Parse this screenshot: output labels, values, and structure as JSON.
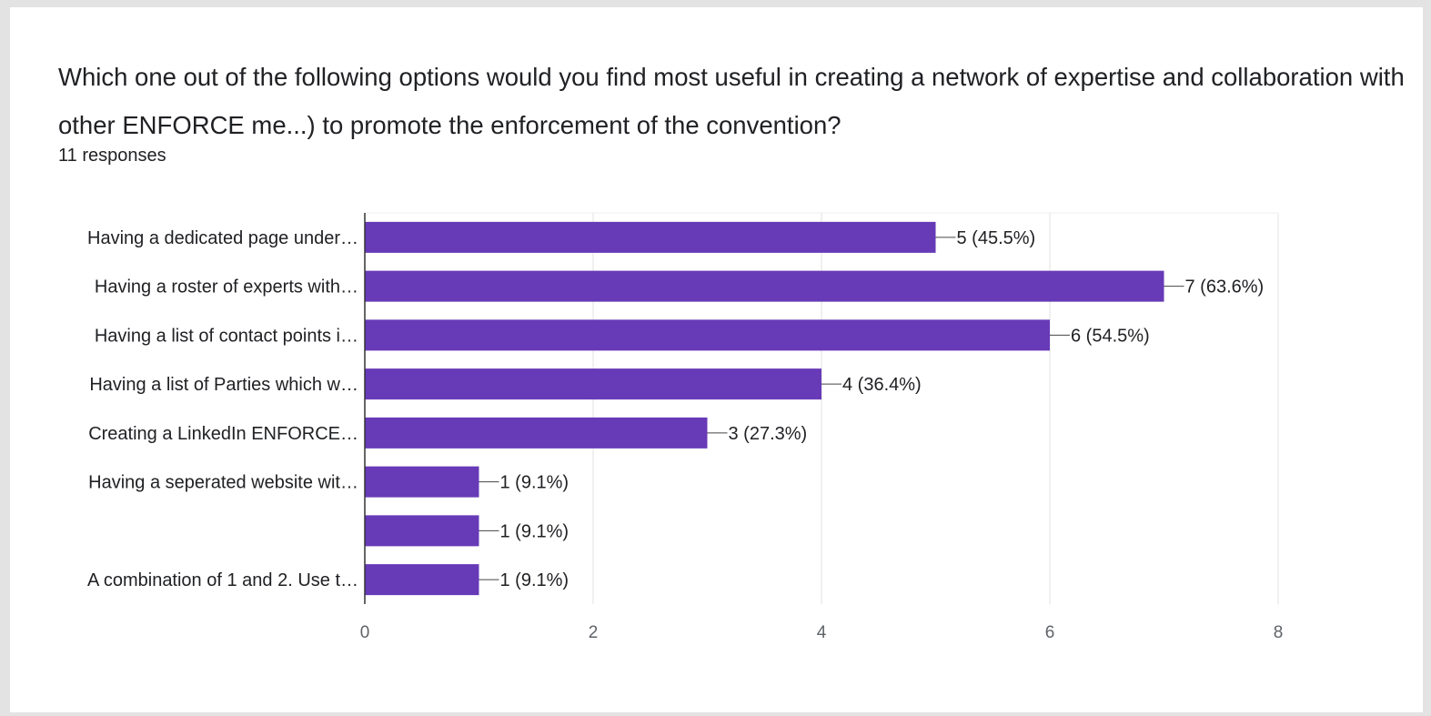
{
  "question": {
    "text": "Which one out of the following options would you find most useful in creating a network of expertise and collaboration with other ENFORCE me...) to promote the enforcement of the convention?",
    "responses": "11 responses"
  },
  "chart_data": {
    "type": "bar",
    "orientation": "horizontal",
    "categories": [
      "Having a dedicated page under…",
      "Having a roster of experts with…",
      "Having a list of contact points i…",
      "Having a list of Parties which w…",
      "Creating a LinkedIn ENFORCE…",
      "Having a seperated website wit…",
      "",
      "A combination of 1 and 2. Use t…"
    ],
    "values": [
      5,
      7,
      6,
      4,
      3,
      1,
      1,
      1
    ],
    "value_labels": [
      "5 (45.5%)",
      "7 (63.6%)",
      "6 (54.5%)",
      "4 (36.4%)",
      "3 (27.3%)",
      "1 (9.1%)",
      "1 (9.1%)",
      "1 (9.1%)"
    ],
    "xlim": [
      0,
      8
    ],
    "xticks": [
      0,
      2,
      4,
      6,
      8
    ],
    "grid": true,
    "legend": "none",
    "bar_color": "#673ab7"
  }
}
